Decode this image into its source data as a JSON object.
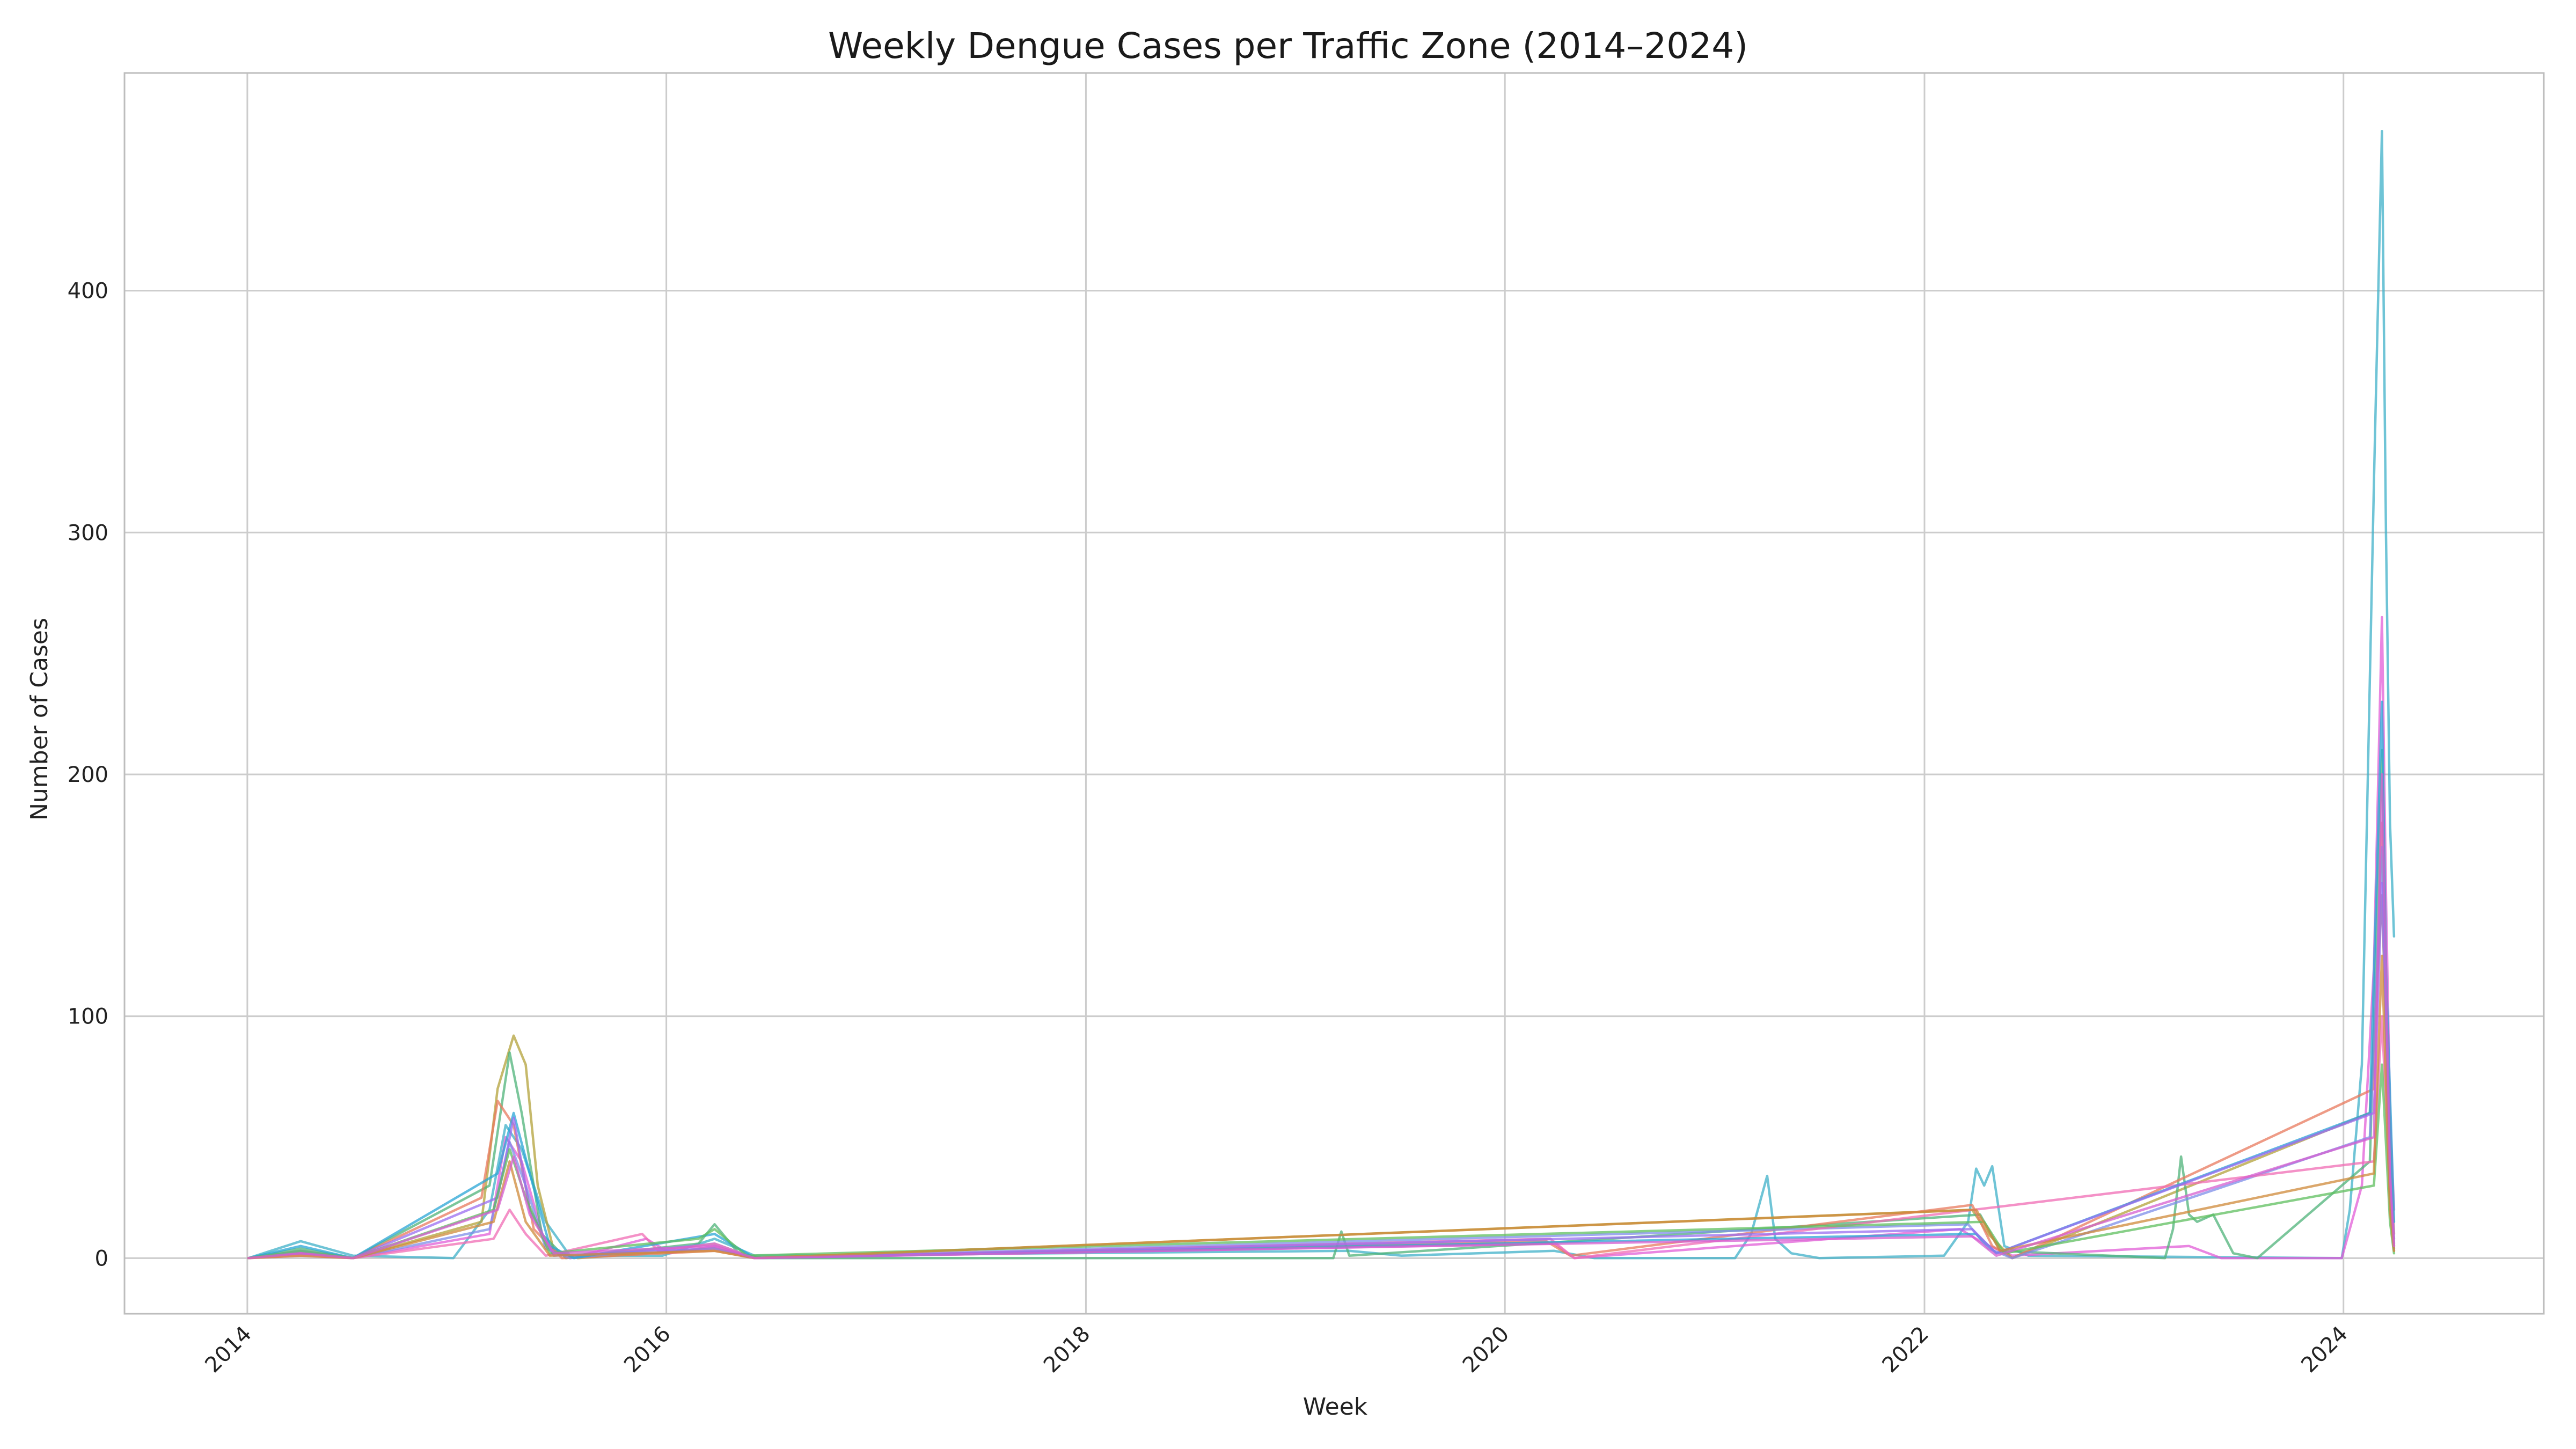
{
  "chart_data": {
    "type": "line",
    "title": "Weekly Dengue Cases per Traffic Zone (2014–2024)",
    "xlabel": "Week",
    "ylabel": "Number of Cases",
    "x_type": "date",
    "xlim": [
      "2013-06-01",
      "2024-12-15"
    ],
    "ylim": [
      -23,
      490
    ],
    "xticks": [
      "2014-01-01",
      "2016-01-01",
      "2018-01-01",
      "2020-01-01",
      "2022-01-01",
      "2024-01-01"
    ],
    "xtick_labels": [
      "2014",
      "2016",
      "2018",
      "2020",
      "2022",
      "2024"
    ],
    "yticks": [
      0,
      100,
      200,
      300,
      400
    ],
    "ytick_labels": [
      "0",
      "100",
      "200",
      "300",
      "400"
    ],
    "grid": true,
    "legend": "none",
    "series": [
      {
        "color": "#3fb0c8",
        "points": [
          [
            "2014-01-03",
            0
          ],
          [
            "2014-04-04",
            7
          ],
          [
            "2014-07-04",
            1
          ],
          [
            "2014-12-26",
            0
          ],
          [
            "2015-02-27",
            20
          ],
          [
            "2015-03-27",
            55
          ],
          [
            "2015-04-24",
            45
          ],
          [
            "2015-06-05",
            15
          ],
          [
            "2015-07-17",
            1
          ],
          [
            "2015-12-25",
            1
          ],
          [
            "2016-03-25",
            8
          ],
          [
            "2016-06-03",
            1
          ],
          [
            "2019-04-05",
            3
          ],
          [
            "2019-07-05",
            1
          ],
          [
            "2020-03-27",
            3
          ],
          [
            "2020-06-05",
            0
          ],
          [
            "2021-02-05",
            0
          ],
          [
            "2021-03-05",
            10
          ],
          [
            "2021-04-02",
            34
          ],
          [
            "2021-04-16",
            8
          ],
          [
            "2021-05-14",
            2
          ],
          [
            "2021-07-02",
            0
          ],
          [
            "2022-02-04",
            1
          ],
          [
            "2022-03-18",
            15
          ],
          [
            "2022-04-01",
            37
          ],
          [
            "2022-04-15",
            30
          ],
          [
            "2022-04-29",
            38
          ],
          [
            "2022-05-20",
            5
          ],
          [
            "2022-07-01",
            1
          ],
          [
            "2023-12-29",
            0
          ],
          [
            "2024-01-12",
            20
          ],
          [
            "2024-02-02",
            80
          ],
          [
            "2024-02-23",
            320
          ],
          [
            "2024-03-08",
            466
          ],
          [
            "2024-03-15",
            300
          ],
          [
            "2024-03-22",
            180
          ],
          [
            "2024-03-29",
            133
          ]
        ]
      },
      {
        "color": "#e15ed7",
        "points": [
          [
            "2014-01-03",
            0
          ],
          [
            "2014-04-04",
            3
          ],
          [
            "2014-07-04",
            0
          ],
          [
            "2015-02-27",
            10
          ],
          [
            "2015-03-27",
            50
          ],
          [
            "2015-04-24",
            40
          ],
          [
            "2015-06-05",
            5
          ],
          [
            "2015-07-17",
            0
          ],
          [
            "2015-11-27",
            8
          ],
          [
            "2016-01-08",
            2
          ],
          [
            "2016-03-25",
            5
          ],
          [
            "2016-06-03",
            0
          ],
          [
            "2020-03-27",
            6
          ],
          [
            "2020-05-01",
            0
          ],
          [
            "2022-03-04",
            12
          ],
          [
            "2022-04-15",
            6
          ],
          [
            "2022-06-03",
            1
          ],
          [
            "2023-04-07",
            5
          ],
          [
            "2023-06-02",
            0
          ],
          [
            "2023-12-29",
            0
          ],
          [
            "2024-02-02",
            30
          ],
          [
            "2024-02-23",
            120
          ],
          [
            "2024-03-08",
            265
          ],
          [
            "2024-03-15",
            150
          ],
          [
            "2024-03-22",
            60
          ],
          [
            "2024-03-29",
            20
          ]
        ]
      },
      {
        "color": "#b3a13a",
        "points": [
          [
            "2014-01-03",
            0
          ],
          [
            "2014-04-04",
            2
          ],
          [
            "2014-07-04",
            0
          ],
          [
            "2015-02-13",
            15
          ],
          [
            "2015-03-13",
            70
          ],
          [
            "2015-04-10",
            92
          ],
          [
            "2015-05-01",
            80
          ],
          [
            "2015-05-22",
            30
          ],
          [
            "2015-06-19",
            3
          ],
          [
            "2015-07-31",
            0
          ],
          [
            "2016-03-25",
            4
          ],
          [
            "2016-06-03",
            0
          ],
          [
            "2022-03-25",
            20
          ],
          [
            "2022-04-22",
            10
          ],
          [
            "2022-06-03",
            0
          ],
          [
            "2024-02-16",
            60
          ],
          [
            "2024-03-08",
            150
          ],
          [
            "2024-03-22",
            40
          ],
          [
            "2024-03-29",
            5
          ]
        ]
      },
      {
        "color": "#4fb37a",
        "points": [
          [
            "2014-01-03",
            0
          ],
          [
            "2014-04-04",
            4
          ],
          [
            "2014-07-04",
            0
          ],
          [
            "2015-02-27",
            30
          ],
          [
            "2015-04-03",
            85
          ],
          [
            "2015-04-24",
            60
          ],
          [
            "2015-05-29",
            10
          ],
          [
            "2015-07-10",
            0
          ],
          [
            "2016-02-26",
            6
          ],
          [
            "2016-03-25",
            14
          ],
          [
            "2016-05-06",
            2
          ],
          [
            "2016-06-17",
            0
          ],
          [
            "2019-03-08",
            0
          ],
          [
            "2019-03-22",
            11
          ],
          [
            "2019-04-05",
            1
          ],
          [
            "2022-04-08",
            18
          ],
          [
            "2022-05-13",
            3
          ],
          [
            "2023-02-24",
            0
          ],
          [
            "2023-03-10",
            12
          ],
          [
            "2023-03-24",
            42
          ],
          [
            "2023-04-07",
            18
          ],
          [
            "2023-04-21",
            15
          ],
          [
            "2023-05-19",
            18
          ],
          [
            "2023-06-23",
            2
          ],
          [
            "2023-08-04",
            0
          ],
          [
            "2024-02-16",
            40
          ],
          [
            "2024-03-08",
            210
          ],
          [
            "2024-03-22",
            30
          ],
          [
            "2024-03-29",
            8
          ]
        ]
      },
      {
        "color": "#e87a5d",
        "points": [
          [
            "2014-01-03",
            0
          ],
          [
            "2014-04-04",
            2
          ],
          [
            "2014-07-04",
            0
          ],
          [
            "2015-02-13",
            25
          ],
          [
            "2015-03-13",
            65
          ],
          [
            "2015-04-10",
            55
          ],
          [
            "2015-05-15",
            12
          ],
          [
            "2015-07-03",
            0
          ],
          [
            "2016-03-25",
            3
          ],
          [
            "2016-06-03",
            0
          ],
          [
            "2020-03-13",
            7
          ],
          [
            "2020-04-24",
            1
          ],
          [
            "2022-03-25",
            22
          ],
          [
            "2022-04-29",
            5
          ],
          [
            "2022-06-03",
            0
          ],
          [
            "2024-02-23",
            70
          ],
          [
            "2024-03-08",
            180
          ],
          [
            "2024-03-22",
            50
          ],
          [
            "2024-03-29",
            10
          ]
        ]
      },
      {
        "color": "#7d8ee8",
        "points": [
          [
            "2014-01-03",
            0
          ],
          [
            "2014-04-04",
            3
          ],
          [
            "2014-07-04",
            0
          ],
          [
            "2015-02-27",
            12
          ],
          [
            "2015-04-03",
            48
          ],
          [
            "2015-05-01",
            30
          ],
          [
            "2015-06-05",
            4
          ],
          [
            "2015-07-17",
            0
          ],
          [
            "2016-03-25",
            6
          ],
          [
            "2016-06-03",
            0
          ],
          [
            "2022-03-18",
            14
          ],
          [
            "2022-04-22",
            4
          ],
          [
            "2022-06-03",
            0
          ],
          [
            "2024-02-16",
            50
          ],
          [
            "2024-03-08",
            170
          ],
          [
            "2024-03-22",
            45
          ],
          [
            "2024-03-29",
            6
          ]
        ]
      },
      {
        "color": "#f06cb4",
        "points": [
          [
            "2014-01-03",
            0
          ],
          [
            "2014-04-04",
            1
          ],
          [
            "2014-07-04",
            0
          ],
          [
            "2015-03-06",
            8
          ],
          [
            "2015-04-03",
            20
          ],
          [
            "2015-05-01",
            10
          ],
          [
            "2015-06-05",
            1
          ],
          [
            "2015-11-20",
            10
          ],
          [
            "2015-12-18",
            3
          ],
          [
            "2016-03-25",
            6
          ],
          [
            "2016-06-03",
            0
          ],
          [
            "2020-03-20",
            8
          ],
          [
            "2020-05-01",
            0
          ],
          [
            "2024-02-23",
            40
          ],
          [
            "2024-03-08",
            100
          ],
          [
            "2024-03-22",
            25
          ],
          [
            "2024-03-29",
            3
          ]
        ]
      },
      {
        "color": "#2aa6d6",
        "points": [
          [
            "2014-01-03",
            0
          ],
          [
            "2014-04-04",
            5
          ],
          [
            "2014-07-04",
            0
          ],
          [
            "2015-03-13",
            35
          ],
          [
            "2015-04-10",
            60
          ],
          [
            "2015-05-08",
            35
          ],
          [
            "2015-06-12",
            5
          ],
          [
            "2015-07-24",
            0
          ],
          [
            "2016-03-25",
            10
          ],
          [
            "2016-06-03",
            0
          ],
          [
            "2022-04-01",
            10
          ],
          [
            "2022-05-06",
            2
          ],
          [
            "2024-02-16",
            60
          ],
          [
            "2024-03-08",
            230
          ],
          [
            "2024-03-15",
            120
          ],
          [
            "2024-03-29",
            15
          ]
        ]
      },
      {
        "color": "#9a6ef0",
        "points": [
          [
            "2014-01-03",
            0
          ],
          [
            "2014-04-04",
            2
          ],
          [
            "2014-07-04",
            0
          ],
          [
            "2015-03-13",
            25
          ],
          [
            "2015-04-10",
            58
          ],
          [
            "2015-05-08",
            20
          ],
          [
            "2015-06-19",
            1
          ],
          [
            "2016-03-25",
            4
          ],
          [
            "2016-06-03",
            0
          ],
          [
            "2022-03-25",
            12
          ],
          [
            "2022-05-06",
            2
          ],
          [
            "2024-02-23",
            60
          ],
          [
            "2024-03-08",
            155
          ],
          [
            "2024-03-22",
            30
          ],
          [
            "2024-03-29",
            4
          ]
        ]
      },
      {
        "color": "#5fbf5f",
        "points": [
          [
            "2014-01-03",
            0
          ],
          [
            "2014-04-04",
            3
          ],
          [
            "2014-07-04",
            0
          ],
          [
            "2015-03-06",
            20
          ],
          [
            "2015-04-03",
            45
          ],
          [
            "2015-05-01",
            25
          ],
          [
            "2015-06-12",
            2
          ],
          [
            "2016-02-26",
            8
          ],
          [
            "2016-03-25",
            12
          ],
          [
            "2016-05-20",
            1
          ],
          [
            "2022-04-15",
            15
          ],
          [
            "2022-05-20",
            2
          ],
          [
            "2024-02-23",
            30
          ],
          [
            "2024-03-08",
            80
          ],
          [
            "2024-03-22",
            15
          ],
          [
            "2024-03-29",
            2
          ]
        ]
      },
      {
        "color": "#cf8a3a",
        "points": [
          [
            "2014-01-03",
            0
          ],
          [
            "2014-04-04",
            1
          ],
          [
            "2014-07-04",
            0
          ],
          [
            "2015-03-06",
            15
          ],
          [
            "2015-04-03",
            40
          ],
          [
            "2015-05-01",
            15
          ],
          [
            "2015-06-12",
            1
          ],
          [
            "2016-03-25",
            3
          ],
          [
            "2016-06-03",
            0
          ],
          [
            "2022-04-01",
            20
          ],
          [
            "2022-05-13",
            3
          ],
          [
            "2024-02-23",
            35
          ],
          [
            "2024-03-08",
            125
          ],
          [
            "2024-03-22",
            20
          ],
          [
            "2024-03-29",
            3
          ]
        ]
      },
      {
        "color": "#d65fd0",
        "points": [
          [
            "2014-01-03",
            0
          ],
          [
            "2014-04-04",
            2
          ],
          [
            "2014-07-04",
            0
          ],
          [
            "2015-03-13",
            20
          ],
          [
            "2015-04-10",
            42
          ],
          [
            "2015-05-08",
            18
          ],
          [
            "2015-06-19",
            2
          ],
          [
            "2016-03-25",
            5
          ],
          [
            "2016-06-03",
            0
          ],
          [
            "2022-03-25",
            9
          ],
          [
            "2022-05-06",
            1
          ],
          [
            "2024-02-23",
            50
          ],
          [
            "2024-03-08",
            200
          ],
          [
            "2024-03-22",
            35
          ],
          [
            "2024-03-29",
            5
          ]
        ]
      }
    ]
  }
}
